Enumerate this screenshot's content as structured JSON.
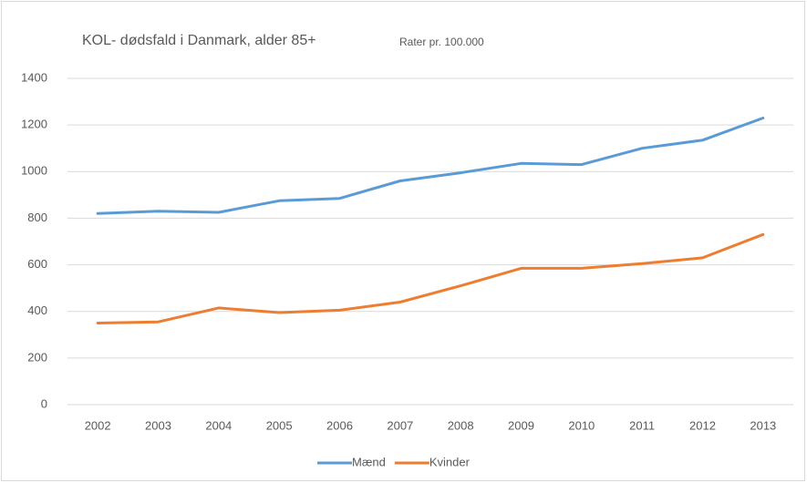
{
  "chart_data": {
    "type": "line",
    "title": "KOL- dødsfald  i Danmark,  alder 85+",
    "subtitle": "Rater pr. 100.000",
    "categories": [
      "2002",
      "2003",
      "2004",
      "2005",
      "2006",
      "2007",
      "2008",
      "2009",
      "2010",
      "2011",
      "2012",
      "2013"
    ],
    "series": [
      {
        "name": "Mænd",
        "color": "#5b9bd5",
        "values": [
          820,
          830,
          825,
          875,
          885,
          960,
          995,
          1035,
          1030,
          1100,
          1135,
          1230
        ]
      },
      {
        "name": "Kvinder",
        "color": "#ed7d31",
        "values": [
          350,
          355,
          415,
          395,
          405,
          440,
          510,
          585,
          585,
          605,
          630,
          730
        ]
      }
    ],
    "ylim": [
      0,
      1400
    ],
    "yticks": [
      0,
      200,
      400,
      600,
      800,
      1000,
      1200,
      1400
    ],
    "grid": true,
    "legend": "bottom"
  }
}
